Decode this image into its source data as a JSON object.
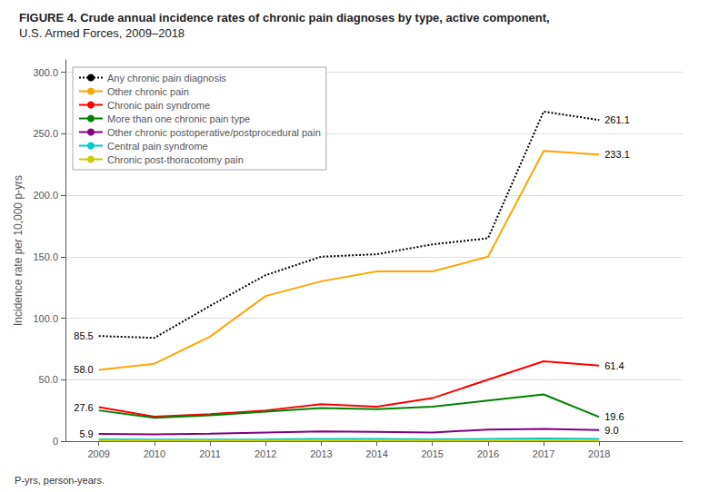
{
  "chart_data": {
    "type": "line",
    "title": "FIGURE 4. Crude annual incidence rates of chronic pain diagnoses by type, active component,",
    "subtitle": "U.S. Armed Forces, 2009–2018",
    "y_label": "Incidence rate per 10,000 p-yrs",
    "x": [
      2009,
      2010,
      2011,
      2012,
      2013,
      2014,
      2015,
      2016,
      2017,
      2018
    ],
    "series": [
      {
        "name": "Any chronic pain diagnosis",
        "color": "#000000",
        "line_style": "dotted",
        "values": [
          85.5,
          84.0,
          110.0,
          135.0,
          150.0,
          152.0,
          160.0,
          165.0,
          268.0,
          261.1
        ]
      },
      {
        "name": "Other chronic pain",
        "color": "#FFA500",
        "line_style": "solid",
        "values": [
          58.0,
          63.0,
          85.0,
          118.0,
          130.0,
          138.0,
          138.0,
          150.0,
          236.0,
          233.1
        ]
      },
      {
        "name": "Chronic pain syndrome",
        "color": "#FF0000",
        "line_style": "solid",
        "values": [
          27.6,
          20.0,
          22.0,
          25.0,
          30.0,
          28.0,
          35.0,
          50.0,
          65.0,
          61.4
        ]
      },
      {
        "name": "More than one chronic pain type",
        "color": "#008000",
        "line_style": "solid",
        "values": [
          25.0,
          19.0,
          21.0,
          24.0,
          27.0,
          26.0,
          28.0,
          33.0,
          38.0,
          19.6
        ]
      },
      {
        "name": "Other chronic postoperative/postprocedural pain",
        "color": "#800080",
        "line_style": "solid",
        "values": [
          5.9,
          5.5,
          6.0,
          7.0,
          8.0,
          7.5,
          7.0,
          9.5,
          10.0,
          9.0
        ]
      },
      {
        "name": "Central pain syndrome",
        "color": "#00CCCC",
        "line_style": "solid",
        "values": [
          1.5,
          1.2,
          1.3,
          1.5,
          1.8,
          1.8,
          1.5,
          1.8,
          2.2,
          1.8
        ]
      },
      {
        "name": "Chronic post-thoracotomy pain",
        "color": "#CCCC00",
        "line_style": "solid",
        "values": [
          0.5,
          0.5,
          0.5,
          0.5,
          0.5,
          0.5,
          0.5,
          0.5,
          0.5,
          0.5
        ]
      }
    ],
    "xlim": [
      2008.4,
      2019.5
    ],
    "xticks": [
      2009,
      2010,
      2011,
      2012,
      2013,
      2014,
      2015,
      2016,
      2017,
      2018
    ],
    "ylim": [
      0,
      310
    ],
    "yticks": [
      0,
      {
        "value": 50,
        "label": "50.0"
      },
      {
        "value": 100,
        "label": "100.0"
      },
      {
        "value": 150,
        "label": "150.0"
      },
      {
        "value": 200,
        "label": "200.0"
      },
      {
        "value": 250,
        "label": "250.0"
      },
      {
        "value": 300,
        "label": "300.0"
      }
    ],
    "grid": true,
    "legend": "upper left",
    "annotations": [
      {
        "series": "Any chronic pain diagnosis",
        "x": 2018,
        "text": "261.1"
      },
      {
        "series": "Other chronic pain",
        "x": 2018,
        "text": "233.1"
      },
      {
        "series": "Chronic pain syndrome",
        "x": 2018,
        "text": "61.4"
      },
      {
        "series": "More than one chronic pain type",
        "x": 2018,
        "text": "19.6"
      },
      {
        "series": "Other chronic postoperative/postprocedural pain",
        "x": 2018,
        "text": "9.0"
      },
      {
        "series": "Any chronic pain diagnosis",
        "x": 2009,
        "text": "85.5"
      },
      {
        "series": "Other chronic pain",
        "x": 2009,
        "text": "58.0"
      },
      {
        "series": "Chronic pain syndrome",
        "x": 2009,
        "text": "27.6"
      },
      {
        "series": "Other chronic postoperative/postprocedural pain",
        "x": 2009,
        "text": "5.9"
      },
      {
        "text": "P-yrs, person-years."
      }
    ]
  }
}
